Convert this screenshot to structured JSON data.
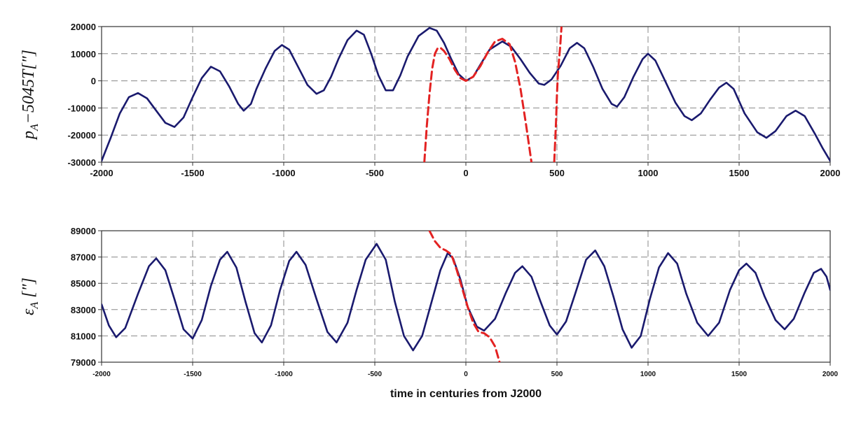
{
  "chart_data": [
    {
      "type": "line",
      "ylabel": "p_A−5045T[″]",
      "ylabel_main": "p",
      "ylabel_sub": "A",
      "ylabel_rest": "−5045T[″]",
      "xlabel": "",
      "xlim": [
        -2000,
        2000
      ],
      "ylim": [
        -30000,
        20000
      ],
      "xticks": [
        "-2000",
        "-1500",
        "-1000",
        "-500",
        "0",
        "500",
        "1000",
        "1500",
        "2000"
      ],
      "yticks": [
        "20000",
        "10000",
        "0",
        "-10000",
        "-20000",
        "-30000"
      ],
      "grid": true,
      "series": [
        {
          "color": "#1a1a6e",
          "style": "solid",
          "points": [
            [
              -2000,
              -29500
            ],
            [
              -1950,
              -21000
            ],
            [
              -1900,
              -12000
            ],
            [
              -1850,
              -6000
            ],
            [
              -1800,
              -4500
            ],
            [
              -1750,
              -6500
            ],
            [
              -1700,
              -11000
            ],
            [
              -1650,
              -15500
            ],
            [
              -1600,
              -17000
            ],
            [
              -1550,
              -13500
            ],
            [
              -1500,
              -6000
            ],
            [
              -1450,
              1000
            ],
            [
              -1400,
              5200
            ],
            [
              -1350,
              3500
            ],
            [
              -1300,
              -2000
            ],
            [
              -1250,
              -8500
            ],
            [
              -1220,
              -11000
            ],
            [
              -1180,
              -8500
            ],
            [
              -1150,
              -3000
            ],
            [
              -1100,
              4500
            ],
            [
              -1050,
              11000
            ],
            [
              -1010,
              13200
            ],
            [
              -970,
              11500
            ],
            [
              -920,
              5000
            ],
            [
              -870,
              -1500
            ],
            [
              -820,
              -4800
            ],
            [
              -780,
              -3500
            ],
            [
              -740,
              1500
            ],
            [
              -700,
              8000
            ],
            [
              -650,
              15000
            ],
            [
              -600,
              18500
            ],
            [
              -560,
              17000
            ],
            [
              -520,
              10000
            ],
            [
              -480,
              2000
            ],
            [
              -440,
              -3500
            ],
            [
              -400,
              -3500
            ],
            [
              -360,
              2000
            ],
            [
              -320,
              9000
            ],
            [
              -260,
              16500
            ],
            [
              -200,
              19500
            ],
            [
              -160,
              18500
            ],
            [
              -120,
              14000
            ],
            [
              -80,
              8000
            ],
            [
              -40,
              2500
            ],
            [
              0,
              0
            ],
            [
              40,
              1500
            ],
            [
              80,
              6000
            ],
            [
              130,
              11500
            ],
            [
              200,
              14500
            ],
            [
              250,
              12500
            ],
            [
              300,
              8000
            ],
            [
              350,
              3000
            ],
            [
              400,
              -1000
            ],
            [
              430,
              -1500
            ],
            [
              470,
              500
            ],
            [
              520,
              5500
            ],
            [
              570,
              12000
            ],
            [
              610,
              14000
            ],
            [
              650,
              12000
            ],
            [
              700,
              5000
            ],
            [
              750,
              -3000
            ],
            [
              800,
              -8500
            ],
            [
              830,
              -9500
            ],
            [
              870,
              -6000
            ],
            [
              920,
              1500
            ],
            [
              970,
              8000
            ],
            [
              1000,
              10000
            ],
            [
              1040,
              7500
            ],
            [
              1090,
              500
            ],
            [
              1150,
              -8000
            ],
            [
              1200,
              -13000
            ],
            [
              1240,
              -14500
            ],
            [
              1290,
              -12000
            ],
            [
              1340,
              -7000
            ],
            [
              1390,
              -2500
            ],
            [
              1430,
              -700
            ],
            [
              1470,
              -3000
            ],
            [
              1530,
              -12000
            ],
            [
              1600,
              -19000
            ],
            [
              1650,
              -21000
            ],
            [
              1700,
              -18500
            ],
            [
              1760,
              -13000
            ],
            [
              1810,
              -11000
            ],
            [
              1860,
              -13000
            ],
            [
              1920,
              -20000
            ],
            [
              1960,
              -25000
            ],
            [
              2000,
              -29500
            ]
          ]
        },
        {
          "color": "#e32222",
          "style": "dashed",
          "points": [
            [
              -228,
              -30000
            ],
            [
              -215,
              -17000
            ],
            [
              -200,
              -5000
            ],
            [
              -185,
              4500
            ],
            [
              -170,
              10000
            ],
            [
              -155,
              12000
            ],
            [
              -140,
              12200
            ],
            [
              -120,
              11000
            ],
            [
              -90,
              8000
            ],
            [
              -60,
              4000
            ],
            [
              -30,
              1000
            ],
            [
              0,
              0
            ],
            [
              40,
              1500
            ],
            [
              80,
              5500
            ],
            [
              120,
              10500
            ],
            [
              160,
              14500
            ],
            [
              200,
              15500
            ],
            [
              240,
              13500
            ],
            [
              270,
              7000
            ],
            [
              300,
              -3000
            ],
            [
              330,
              -16000
            ],
            [
              360,
              -30000
            ]
          ]
        },
        {
          "color": "#e32222",
          "style": "dashed",
          "points": [
            [
              485,
              -30000
            ],
            [
              495,
              -15000
            ],
            [
              500,
              -5000
            ],
            [
              505,
              2500
            ],
            [
              512,
              8000
            ],
            [
              518,
              13000
            ],
            [
              525,
              20000
            ]
          ]
        }
      ]
    },
    {
      "type": "line",
      "ylabel": "ε_A [″]",
      "ylabel_main": "ε",
      "ylabel_sub": "A",
      "ylabel_rest": " [″]",
      "xlabel": "time in centuries from J2000",
      "xlim": [
        -2000,
        2000
      ],
      "ylim": [
        79000,
        89000
      ],
      "xticks": [
        "-2000",
        "-1500",
        "-1000",
        "-500",
        "0",
        "500",
        "1000",
        "1500",
        "2000"
      ],
      "yticks": [
        "89000",
        "87000",
        "85000",
        "83000",
        "81000",
        "79000"
      ],
      "grid": true,
      "series": [
        {
          "color": "#1a1a6e",
          "style": "solid",
          "points": [
            [
              -2000,
              83400
            ],
            [
              -1960,
              81800
            ],
            [
              -1920,
              80900
            ],
            [
              -1870,
              81600
            ],
            [
              -1800,
              84200
            ],
            [
              -1740,
              86300
            ],
            [
              -1700,
              86900
            ],
            [
              -1650,
              86000
            ],
            [
              -1600,
              83800
            ],
            [
              -1550,
              81500
            ],
            [
              -1500,
              80800
            ],
            [
              -1450,
              82200
            ],
            [
              -1400,
              84800
            ],
            [
              -1350,
              86800
            ],
            [
              -1310,
              87400
            ],
            [
              -1260,
              86200
            ],
            [
              -1210,
              83600
            ],
            [
              -1160,
              81200
            ],
            [
              -1120,
              80500
            ],
            [
              -1070,
              81800
            ],
            [
              -1020,
              84500
            ],
            [
              -970,
              86700
            ],
            [
              -930,
              87400
            ],
            [
              -880,
              86400
            ],
            [
              -820,
              83800
            ],
            [
              -760,
              81300
            ],
            [
              -710,
              80500
            ],
            [
              -650,
              82000
            ],
            [
              -600,
              84500
            ],
            [
              -550,
              86800
            ],
            [
              -490,
              88000
            ],
            [
              -440,
              86800
            ],
            [
              -390,
              83600
            ],
            [
              -340,
              81000
            ],
            [
              -290,
              79900
            ],
            [
              -240,
              81000
            ],
            [
              -190,
              83500
            ],
            [
              -140,
              86000
            ],
            [
              -100,
              87300
            ],
            [
              -70,
              86900
            ],
            [
              -30,
              85300
            ],
            [
              10,
              83200
            ],
            [
              60,
              81700
            ],
            [
              100,
              81400
            ],
            [
              160,
              82300
            ],
            [
              220,
              84300
            ],
            [
              270,
              85800
            ],
            [
              310,
              86300
            ],
            [
              360,
              85500
            ],
            [
              410,
              83600
            ],
            [
              460,
              81800
            ],
            [
              500,
              81100
            ],
            [
              550,
              82100
            ],
            [
              600,
              84200
            ],
            [
              660,
              86800
            ],
            [
              710,
              87500
            ],
            [
              760,
              86300
            ],
            [
              810,
              84000
            ],
            [
              860,
              81500
            ],
            [
              910,
              80100
            ],
            [
              960,
              81000
            ],
            [
              1010,
              83800
            ],
            [
              1060,
              86200
            ],
            [
              1110,
              87300
            ],
            [
              1160,
              86500
            ],
            [
              1210,
              84200
            ],
            [
              1270,
              82000
            ],
            [
              1330,
              81000
            ],
            [
              1390,
              82000
            ],
            [
              1450,
              84500
            ],
            [
              1500,
              86000
            ],
            [
              1540,
              86500
            ],
            [
              1590,
              85800
            ],
            [
              1640,
              84000
            ],
            [
              1700,
              82200
            ],
            [
              1750,
              81500
            ],
            [
              1800,
              82300
            ],
            [
              1860,
              84300
            ],
            [
              1910,
              85800
            ],
            [
              1950,
              86100
            ],
            [
              1980,
              85500
            ],
            [
              2000,
              84500
            ]
          ]
        },
        {
          "color": "#e32222",
          "style": "dashed",
          "points": [
            [
              -200,
              89000
            ],
            [
              -170,
              88200
            ],
            [
              -140,
              87700
            ],
            [
              -110,
              87500
            ],
            [
              -80,
              87200
            ],
            [
              -50,
              86000
            ],
            [
              -20,
              84600
            ],
            [
              10,
              83200
            ],
            [
              40,
              82000
            ],
            [
              70,
              81300
            ],
            [
              100,
              81200
            ],
            [
              130,
              80900
            ],
            [
              160,
              80200
            ],
            [
              185,
              79000
            ]
          ]
        }
      ]
    }
  ]
}
